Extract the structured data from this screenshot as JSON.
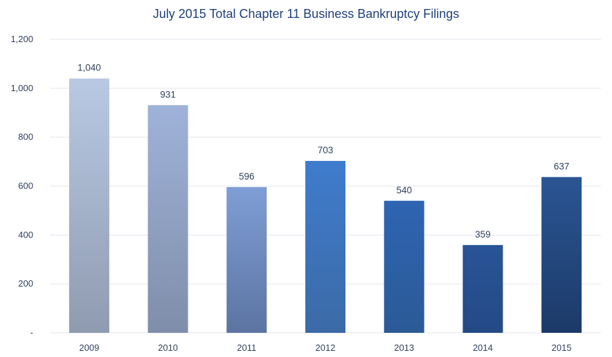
{
  "chart_data": {
    "type": "bar",
    "title": "July 2015 Total Chapter 11 Business Bankruptcy Filings",
    "categories": [
      "2009",
      "2010",
      "2011",
      "2012",
      "2013",
      "2014",
      "2015"
    ],
    "values": [
      1040,
      931,
      596,
      703,
      540,
      359,
      637
    ],
    "data_labels": [
      "1,040",
      "931",
      "596",
      "703",
      "540",
      "359",
      "637"
    ],
    "y_ticks": [
      0,
      200,
      400,
      600,
      800,
      1000,
      1200
    ],
    "y_tick_labels": [
      "-",
      "200",
      "400",
      "600",
      "800",
      "1,000",
      "1,200"
    ],
    "ylim": [
      0,
      1200
    ],
    "xlabel": "",
    "ylabel": "",
    "grid": true,
    "legend": "none",
    "bar_colors": [
      {
        "top": "#b9c9e3",
        "bottom": "#8f9bb0"
      },
      {
        "top": "#9fb2d9",
        "bottom": "#7f8ea9"
      },
      {
        "top": "#7f9ed6",
        "bottom": "#5c74a2"
      },
      {
        "top": "#3f7ccd",
        "bottom": "#3b6aa6"
      },
      {
        "top": "#2e64b2",
        "bottom": "#2b5a96"
      },
      {
        "top": "#295497",
        "bottom": "#244a85"
      },
      {
        "top": "#2a5593",
        "bottom": "#1c3a68"
      }
    ],
    "title_color": "#1f3f7a",
    "text_color": "#2e3f5c",
    "grid_color": "#e1e6ee"
  }
}
